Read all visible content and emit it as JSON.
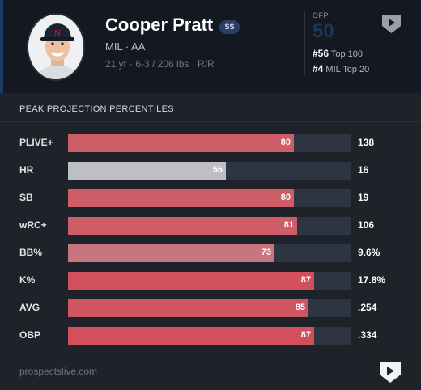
{
  "player": {
    "name": "Cooper Pratt",
    "position": "SS",
    "team_level": "MIL · AA",
    "bio": "21 yr · 6-3 / 206 lbs · R/R"
  },
  "ofp": {
    "label": "OFP",
    "value": "50",
    "top100_rank": "#56",
    "top100_label": "Top 100",
    "team_rank": "#4",
    "team_label": "MIL Top 20"
  },
  "section": {
    "title": "PEAK PROJECTION PERCENTILES"
  },
  "rows": [
    {
      "label": "PLIVE+",
      "percentile": 80,
      "percentile_text": "80",
      "value": "138",
      "color": "#cd5d66"
    },
    {
      "label": "HR",
      "percentile": 56,
      "percentile_text": "56",
      "value": "16",
      "color": "#bdbfc4"
    },
    {
      "label": "SB",
      "percentile": 80,
      "percentile_text": "80",
      "value": "19",
      "color": "#cd5d66"
    },
    {
      "label": "wRC+",
      "percentile": 81,
      "percentile_text": "81",
      "value": "106",
      "color": "#cd5d66"
    },
    {
      "label": "BB%",
      "percentile": 73,
      "percentile_text": "73",
      "value": "9.6%",
      "color": "#c8767d"
    },
    {
      "label": "K%",
      "percentile": 87,
      "percentile_text": "87",
      "value": "17.8%",
      "color": "#d1505a"
    },
    {
      "label": "AVG",
      "percentile": 85,
      "percentile_text": "85",
      "value": ".254",
      "color": "#cf5560"
    },
    {
      "label": "OBP",
      "percentile": 87,
      "percentile_text": "87",
      "value": ".334",
      "color": "#d1505a"
    }
  ],
  "footer": {
    "site": "prospectslive.com"
  },
  "icons": {
    "brand_logo": "prospectslive-logo-icon",
    "avatar": "player-headshot"
  }
}
